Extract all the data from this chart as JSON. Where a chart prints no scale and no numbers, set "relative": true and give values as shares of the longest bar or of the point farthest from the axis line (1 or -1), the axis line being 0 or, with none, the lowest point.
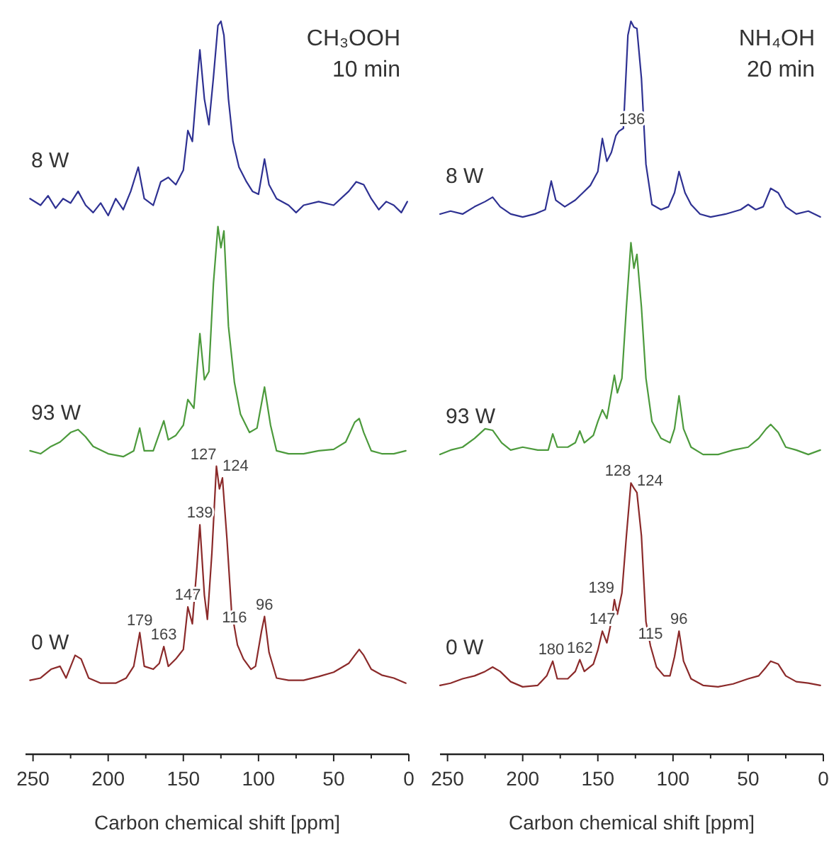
{
  "chart_data": [
    {
      "type": "line",
      "title": "CH₃OOH",
      "subtitle": "10 min",
      "xlabel": "Carbon chemical shift [ppm]",
      "relative": true,
      "xlim": [
        255,
        0
      ],
      "xticks": [
        250,
        {
          "value": 225,
          "label": null
        },
        200,
        {
          "value": 175,
          "label": null
        },
        150,
        {
          "value": 125,
          "label": null
        },
        100,
        {
          "value": 75,
          "label": null
        },
        50,
        {
          "value": 25,
          "label": null
        },
        0
      ],
      "series": [
        {
          "name": "8 W",
          "color": "#2e3192",
          "x": [
            252,
            245,
            240,
            235,
            230,
            225,
            220,
            215,
            210,
            205,
            200,
            195,
            190,
            185,
            180,
            176,
            170,
            165,
            160,
            155,
            150,
            147,
            144,
            141,
            139,
            136,
            133,
            130,
            127,
            125,
            123,
            120,
            117,
            113,
            108,
            104,
            100,
            96,
            93,
            88,
            80,
            75,
            70,
            60,
            50,
            40,
            35,
            30,
            25,
            20,
            15,
            10,
            5,
            1
          ],
          "values": [
            0.758,
            0.749,
            0.762,
            0.745,
            0.758,
            0.752,
            0.768,
            0.749,
            0.739,
            0.752,
            0.735,
            0.758,
            0.743,
            0.768,
            0.801,
            0.758,
            0.749,
            0.781,
            0.787,
            0.777,
            0.797,
            0.851,
            0.836,
            0.913,
            0.961,
            0.894,
            0.859,
            0.923,
            0.994,
            1,
            0.981,
            0.894,
            0.836,
            0.801,
            0.781,
            0.768,
            0.764,
            0.812,
            0.777,
            0.758,
            0.749,
            0.739,
            0.749,
            0.754,
            0.749,
            0.768,
            0.781,
            0.777,
            0.758,
            0.743,
            0.754,
            0.749,
            0.739,
            0.754
          ]
        },
        {
          "name": "93 W",
          "color": "#4c9a3c",
          "x": [
            252,
            245,
            238,
            232,
            225,
            220,
            215,
            210,
            200,
            190,
            183,
            179,
            176,
            170,
            163,
            160,
            155,
            150,
            147,
            143,
            139,
            136,
            133,
            130,
            127,
            125,
            123,
            120,
            116,
            112,
            106,
            101,
            96,
            92,
            88,
            80,
            70,
            60,
            50,
            42,
            36,
            33,
            30,
            25,
            18,
            10,
            2
          ],
          "values": [
            0.414,
            0.41,
            0.42,
            0.426,
            0.439,
            0.443,
            0.433,
            0.42,
            0.41,
            0.406,
            0.414,
            0.445,
            0.414,
            0.414,
            0.455,
            0.429,
            0.435,
            0.449,
            0.484,
            0.472,
            0.574,
            0.511,
            0.522,
            0.642,
            0.72,
            0.691,
            0.714,
            0.584,
            0.507,
            0.464,
            0.439,
            0.445,
            0.501,
            0.449,
            0.414,
            0.41,
            0.41,
            0.414,
            0.416,
            0.426,
            0.453,
            0.458,
            0.439,
            0.414,
            0.41,
            0.41,
            0.414
          ]
        },
        {
          "name": "0 W",
          "color": "#8b2a2a",
          "x": [
            252,
            245,
            238,
            232,
            228,
            222,
            218,
            213,
            205,
            195,
            188,
            183,
            179,
            176,
            170,
            166,
            163,
            160,
            155,
            150,
            147,
            144,
            141,
            139,
            136,
            134,
            131,
            128,
            126,
            124,
            121,
            118,
            114,
            110,
            105,
            102,
            98,
            96,
            93,
            88,
            80,
            70,
            60,
            50,
            40,
            36,
            33,
            30,
            25,
            18,
            10,
            2
          ],
          "values": [
            0.101,
            0.104,
            0.116,
            0.12,
            0.104,
            0.135,
            0.13,
            0.104,
            0.097,
            0.097,
            0.104,
            0.12,
            0.166,
            0.12,
            0.116,
            0.124,
            0.147,
            0.12,
            0.13,
            0.143,
            0.201,
            0.178,
            0.255,
            0.313,
            0.217,
            0.184,
            0.275,
            0.393,
            0.362,
            0.377,
            0.294,
            0.197,
            0.149,
            0.13,
            0.116,
            0.12,
            0.168,
            0.188,
            0.139,
            0.104,
            0.101,
            0.101,
            0.106,
            0.112,
            0.124,
            0.135,
            0.143,
            0.135,
            0.116,
            0.108,
            0.104,
            0.097
          ]
        }
      ],
      "annotations": [
        {
          "text": "179",
          "x": 179,
          "y": 0.166
        },
        {
          "text": "163",
          "x": 163,
          "y": 0.147
        },
        {
          "text": "147",
          "x": 147,
          "y": 0.201
        },
        {
          "text": "139",
          "x": 139,
          "y": 0.313
        },
        {
          "text": "127",
          "x": 128,
          "y": 0.393
        },
        {
          "text": "124",
          "x": 124,
          "y": 0.377
        },
        {
          "text": "116",
          "x": 116,
          "y": 0.17
        },
        {
          "text": "96",
          "x": 96,
          "y": 0.188
        }
      ]
    },
    {
      "type": "line",
      "title": "NH₄OH",
      "subtitle": "20 min",
      "xlabel": "Carbon chemical shift [ppm]",
      "relative": true,
      "xlim": [
        255,
        0
      ],
      "xticks": [
        250,
        {
          "value": 225,
          "label": null
        },
        200,
        {
          "value": 175,
          "label": null
        },
        150,
        {
          "value": 125,
          "label": null
        },
        100,
        {
          "value": 75,
          "label": null
        },
        50,
        {
          "value": 25,
          "label": null
        },
        0
      ],
      "series": [
        {
          "name": "8 W",
          "color": "#2e3192",
          "x": [
            255,
            248,
            240,
            232,
            225,
            220,
            215,
            208,
            200,
            192,
            185,
            181,
            178,
            172,
            165,
            160,
            155,
            150,
            147,
            144,
            141,
            138,
            136,
            133,
            130,
            128,
            126,
            124,
            121,
            118,
            114,
            108,
            103,
            99,
            96,
            92,
            88,
            82,
            75,
            65,
            55,
            50,
            45,
            40,
            35,
            30,
            25,
            18,
            10,
            2
          ],
          "values": [
            0.737,
            0.741,
            0.737,
            0.747,
            0.754,
            0.76,
            0.747,
            0.737,
            0.733,
            0.737,
            0.743,
            0.782,
            0.756,
            0.747,
            0.756,
            0.766,
            0.776,
            0.795,
            0.84,
            0.809,
            0.821,
            0.844,
            0.85,
            0.854,
            0.981,
            1,
            0.992,
            0.99,
            0.922,
            0.805,
            0.75,
            0.743,
            0.747,
            0.766,
            0.795,
            0.766,
            0.75,
            0.737,
            0.733,
            0.737,
            0.743,
            0.75,
            0.743,
            0.747,
            0.772,
            0.766,
            0.747,
            0.737,
            0.741,
            0.733
          ]
        },
        {
          "name": "93 W",
          "color": "#4c9a3c",
          "x": [
            255,
            248,
            240,
            232,
            225,
            220,
            214,
            208,
            200,
            190,
            183,
            180,
            177,
            170,
            165,
            162,
            159,
            153,
            150,
            147,
            144,
            141,
            139,
            137,
            134,
            131,
            128,
            126,
            124,
            121,
            118,
            114,
            108,
            102,
            99,
            96,
            93,
            88,
            80,
            70,
            60,
            50,
            43,
            38,
            35,
            30,
            25,
            18,
            10,
            2
          ],
          "values": [
            0.409,
            0.415,
            0.419,
            0.431,
            0.444,
            0.442,
            0.425,
            0.415,
            0.419,
            0.415,
            0.415,
            0.437,
            0.419,
            0.419,
            0.425,
            0.441,
            0.425,
            0.435,
            0.454,
            0.47,
            0.458,
            0.493,
            0.517,
            0.493,
            0.513,
            0.61,
            0.698,
            0.663,
            0.682,
            0.61,
            0.513,
            0.454,
            0.431,
            0.425,
            0.444,
            0.489,
            0.444,
            0.419,
            0.409,
            0.409,
            0.415,
            0.419,
            0.431,
            0.444,
            0.45,
            0.439,
            0.419,
            0.415,
            0.409,
            0.415
          ]
        },
        {
          "name": "0 W",
          "color": "#8b2a2a",
          "x": [
            255,
            248,
            240,
            232,
            225,
            220,
            215,
            208,
            200,
            190,
            184,
            180,
            177,
            170,
            165,
            162,
            159,
            153,
            150,
            147,
            144,
            141,
            139,
            137,
            134,
            131,
            128,
            126,
            124,
            121,
            118,
            115,
            111,
            106,
            102,
            99,
            96,
            93,
            88,
            80,
            70,
            60,
            50,
            43,
            38,
            35,
            30,
            25,
            18,
            10,
            2
          ],
          "values": [
            0.094,
            0.097,
            0.103,
            0.107,
            0.113,
            0.119,
            0.113,
            0.099,
            0.092,
            0.094,
            0.107,
            0.127,
            0.103,
            0.103,
            0.113,
            0.129,
            0.113,
            0.123,
            0.142,
            0.168,
            0.152,
            0.181,
            0.211,
            0.191,
            0.22,
            0.298,
            0.37,
            0.363,
            0.357,
            0.298,
            0.181,
            0.148,
            0.119,
            0.107,
            0.107,
            0.133,
            0.168,
            0.127,
            0.103,
            0.094,
            0.092,
            0.096,
            0.103,
            0.107,
            0.119,
            0.127,
            0.123,
            0.107,
            0.099,
            0.097,
            0.094
          ]
        }
      ],
      "annotations": [
        {
          "text": "136",
          "x": 136,
          "y": 0.85
        },
        {
          "text": "180",
          "x": 181,
          "y": 0.127
        },
        {
          "text": "162",
          "x": 162,
          "y": 0.129
        },
        {
          "text": "147",
          "x": 147,
          "y": 0.168
        },
        {
          "text": "139",
          "x": 139,
          "y": 0.211
        },
        {
          "text": "128",
          "x": 128,
          "y": 0.37
        },
        {
          "text": "124",
          "x": 124,
          "y": 0.357
        },
        {
          "text": "115",
          "x": 115,
          "y": 0.148
        },
        {
          "text": "96",
          "x": 96,
          "y": 0.168
        }
      ]
    }
  ]
}
